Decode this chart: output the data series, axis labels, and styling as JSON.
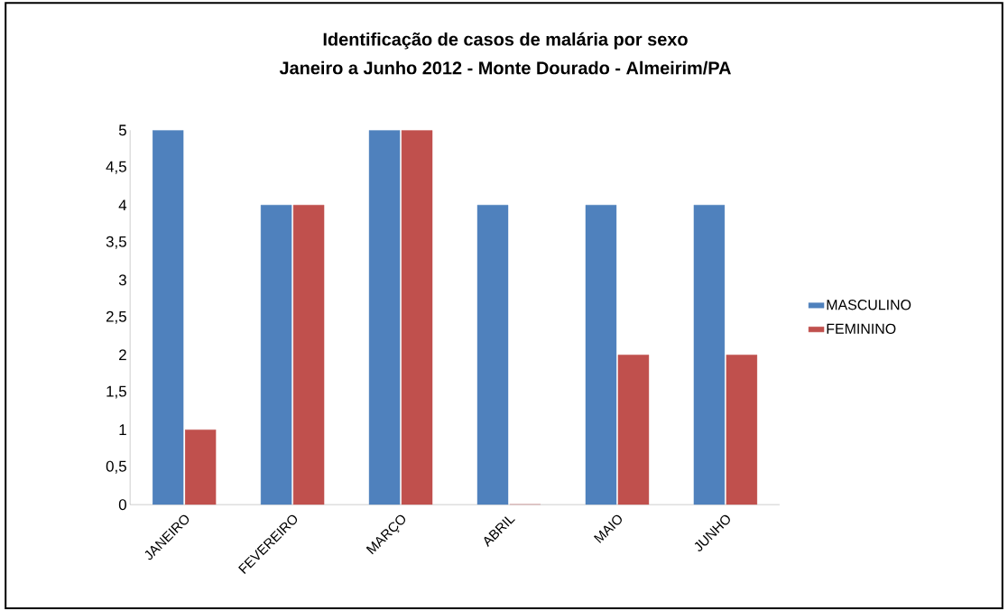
{
  "chart_data": {
    "type": "bar",
    "title": "Identificação de casos de malária por sexo",
    "subtitle": "Janeiro a Junho 2012  - Monte Dourado - Almeirim/PA",
    "categories": [
      "JANEIRO",
      "FEVEREIRO",
      "MARÇO",
      "ABRIL",
      "MAIO",
      "JUNHO"
    ],
    "series": [
      {
        "name": "MASCULINO",
        "color": "#4f81bd",
        "values": [
          5,
          4,
          5,
          4,
          4,
          4
        ]
      },
      {
        "name": "FEMININO",
        "color": "#c0504d",
        "values": [
          1,
          4,
          5,
          0,
          2,
          2
        ]
      }
    ],
    "ylim": [
      0,
      5
    ],
    "yticks": [
      0,
      {
        "value": 0.5,
        "label": "0,5"
      },
      1,
      {
        "value": 1.5,
        "label": "1,5"
      },
      2,
      {
        "value": 2.5,
        "label": "2,5"
      },
      3,
      {
        "value": 3.5,
        "label": "3,5"
      },
      4,
      {
        "value": 4.5,
        "label": "4,5"
      },
      5
    ],
    "grid": false,
    "legend": "right"
  }
}
